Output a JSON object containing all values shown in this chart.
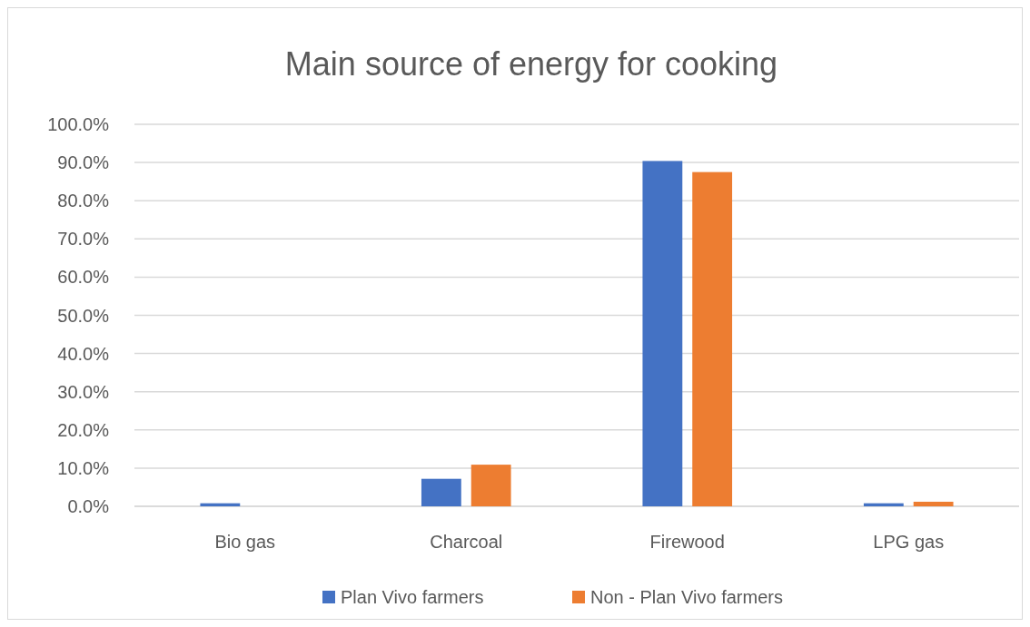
{
  "chart_data": {
    "type": "bar",
    "title": "Main source of energy for cooking",
    "categories": [
      "Bio gas",
      "Charcoal",
      "Firewood",
      "LPG gas"
    ],
    "series": [
      {
        "name": "Plan Vivo farmers",
        "color": "#4472c4",
        "values": [
          0.8,
          7.2,
          90.4,
          0.8
        ]
      },
      {
        "name": "Non - Plan Vivo farmers",
        "color": "#ed7d31",
        "values": [
          0,
          10.9,
          87.5,
          1.2
        ]
      }
    ],
    "ylim": [
      0,
      100
    ],
    "yticks": [
      {
        "value": 0,
        "label": "0.0%"
      },
      {
        "value": 10,
        "label": "10.0%"
      },
      {
        "value": 20,
        "label": "20.0%"
      },
      {
        "value": 30,
        "label": "30.0%"
      },
      {
        "value": 40,
        "label": "40.0%"
      },
      {
        "value": 50,
        "label": "50.0%"
      },
      {
        "value": 60,
        "label": "60.0%"
      },
      {
        "value": 70,
        "label": "70.0%"
      },
      {
        "value": 80,
        "label": "80.0%"
      },
      {
        "value": 90,
        "label": "90.0%"
      },
      {
        "value": 100,
        "label": "100.0%"
      }
    ],
    "grid": "y",
    "legend": "bottom"
  }
}
